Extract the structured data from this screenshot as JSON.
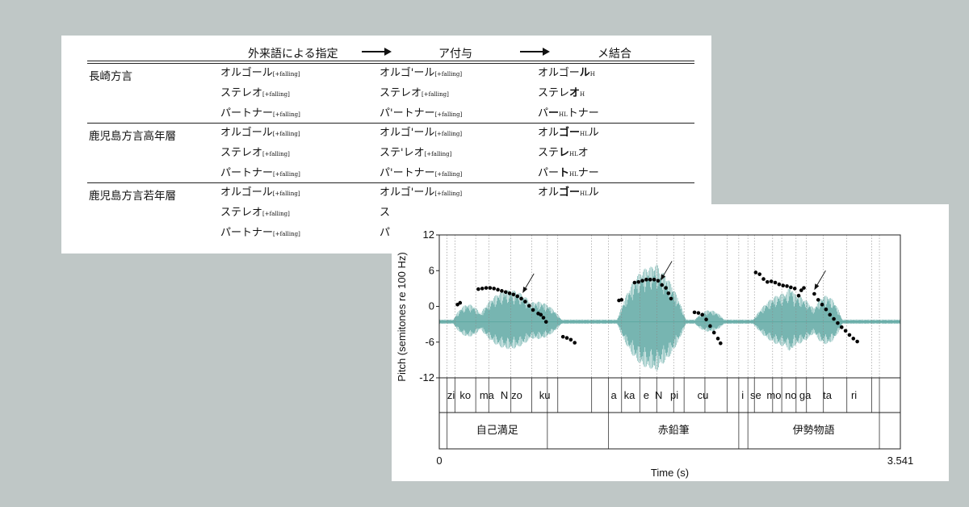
{
  "table": {
    "header": {
      "col1": "外来語による指定",
      "col2": "ア付与",
      "col3": "メ結合"
    },
    "rows": [
      {
        "group": "長崎方言",
        "items": [
          {
            "c1": "オルゴール",
            "c1s": "[+falling]",
            "c2": "オルゴ'ール",
            "c2s": "[+falling]",
            "c3a": "オルゴー",
            "c3b": "ル",
            "c3s": "H",
            "c3c": ""
          },
          {
            "c1": "ステレオ",
            "c1s": "[+falling]",
            "c2": "ステレオ",
            "c2s": "[+falling]",
            "c3a": "ステレ",
            "c3b": "オ",
            "c3s": "H",
            "c3c": ""
          },
          {
            "c1": "パートナー",
            "c1s": "[+falling]",
            "c2": "パ'ートナー",
            "c2s": "[+falling]",
            "c3a": "パ",
            "c3b": "ー",
            "c3s": "HL",
            "c3c": "トナー"
          }
        ]
      },
      {
        "group": "鹿児島方言高年層",
        "items": [
          {
            "c1": "オルゴール",
            "c1s": "[+falling]",
            "c2": "オルゴ'ール",
            "c2s": "[+falling]",
            "c3a": "オル",
            "c3b": "ゴー",
            "c3s": "HL",
            "c3c": "ル"
          },
          {
            "c1": "ステレオ",
            "c1s": "[+falling]",
            "c2": "ステ'レオ",
            "c2s": "[+falling]",
            "c3a": "ステ",
            "c3b": "レ",
            "c3s": "HL",
            "c3c": "オ"
          },
          {
            "c1": "パートナー",
            "c1s": "[+falling]",
            "c2": "パ'ートナー",
            "c2s": "[+falling]",
            "c3a": "パー",
            "c3b": "ト",
            "c3s": "HL",
            "c3c": "ナー"
          }
        ]
      },
      {
        "group": "鹿児島方言若年層",
        "items": [
          {
            "c1": "オルゴール",
            "c1s": "[+falling]",
            "c2": "オルゴ'ール",
            "c2s": "[+falling]",
            "c3a": "オル",
            "c3b": "ゴー",
            "c3s": "HL",
            "c3c": "ル"
          },
          {
            "c1": "ステレオ",
            "c1s": "[+falling]",
            "c2": "ス",
            "c2s": "",
            "c3a": "",
            "c3b": "",
            "c3s": "",
            "c3c": ""
          },
          {
            "c1": "パートナー",
            "c1s": "[+falling]",
            "c2": "パ",
            "c2s": "",
            "c3a": "",
            "c3b": "",
            "c3s": "",
            "c3c": ""
          }
        ]
      }
    ]
  },
  "chart_data": {
    "type": "scatter",
    "ylabel": "Pitch (semitones re 100 Hz)",
    "xlabel": "Time (s)",
    "xlim": [
      0,
      3.541
    ],
    "ylim": [
      -12,
      12
    ],
    "y_ticks": [
      "12",
      "6",
      "0",
      "-6",
      "-12"
    ],
    "x_tick_labels": [
      "0",
      "3.541"
    ],
    "syllables": [
      "zi",
      "ko",
      "ma",
      "N",
      "zo",
      "ku",
      "a",
      "ka",
      "e",
      "N",
      "pi",
      "cu",
      "i",
      "se",
      "mo",
      "no",
      "ga",
      "ta",
      "ri"
    ],
    "words": [
      "自己満足",
      "赤鉛筆",
      "伊勢物語"
    ],
    "colors": {
      "waveform": "#5fa8a3",
      "pitch": "#000000",
      "grid": "#888888"
    },
    "pitch_points": [
      [
        0.14,
        0.3
      ],
      [
        0.16,
        0.6
      ],
      [
        0.3,
        2.9
      ],
      [
        0.33,
        3.0
      ],
      [
        0.36,
        3.1
      ],
      [
        0.39,
        3.1
      ],
      [
        0.42,
        3.0
      ],
      [
        0.45,
        2.8
      ],
      [
        0.48,
        2.6
      ],
      [
        0.51,
        2.4
      ],
      [
        0.54,
        2.2
      ],
      [
        0.57,
        2.0
      ],
      [
        0.6,
        1.7
      ],
      [
        0.63,
        1.3
      ],
      [
        0.66,
        0.8
      ],
      [
        0.69,
        0.1
      ],
      [
        0.72,
        -0.6
      ],
      [
        0.76,
        -1.2
      ],
      [
        0.78,
        -1.4
      ],
      [
        0.8,
        -1.9
      ],
      [
        0.82,
        -2.6
      ],
      [
        0.95,
        -5.1
      ],
      [
        0.98,
        -5.3
      ],
      [
        1.01,
        -5.6
      ],
      [
        1.04,
        -6.1
      ],
      [
        1.38,
        1.0
      ],
      [
        1.4,
        1.1
      ],
      [
        1.5,
        4.0
      ],
      [
        1.53,
        4.1
      ],
      [
        1.56,
        4.3
      ],
      [
        1.59,
        4.5
      ],
      [
        1.62,
        4.5
      ],
      [
        1.65,
        4.5
      ],
      [
        1.68,
        4.3
      ],
      [
        1.71,
        3.6
      ],
      [
        1.74,
        3.1
      ],
      [
        1.76,
        2.2
      ],
      [
        1.78,
        1.3
      ],
      [
        1.96,
        -1.0
      ],
      [
        1.99,
        -1.1
      ],
      [
        2.02,
        -1.4
      ],
      [
        2.05,
        -2.2
      ],
      [
        2.08,
        -3.3
      ],
      [
        2.11,
        -4.4
      ],
      [
        2.14,
        -5.4
      ],
      [
        2.16,
        -6.2
      ],
      [
        2.43,
        5.7
      ],
      [
        2.46,
        5.4
      ],
      [
        2.49,
        4.6
      ],
      [
        2.52,
        4.1
      ],
      [
        2.55,
        4.2
      ],
      [
        2.58,
        4.0
      ],
      [
        2.61,
        3.7
      ],
      [
        2.64,
        3.5
      ],
      [
        2.67,
        3.4
      ],
      [
        2.7,
        3.2
      ],
      [
        2.73,
        3.0
      ],
      [
        2.76,
        1.8
      ],
      [
        2.78,
        2.7
      ],
      [
        2.8,
        3.1
      ],
      [
        2.88,
        2.1
      ],
      [
        2.91,
        1.1
      ],
      [
        2.94,
        0.3
      ],
      [
        2.97,
        -0.5
      ],
      [
        3.0,
        -1.4
      ],
      [
        3.03,
        -2.1
      ],
      [
        3.06,
        -2.8
      ],
      [
        3.09,
        -3.5
      ],
      [
        3.12,
        -4.1
      ],
      [
        3.15,
        -4.8
      ],
      [
        3.18,
        -5.4
      ],
      [
        3.21,
        -5.9
      ]
    ],
    "boundaries": [
      0.06,
      0.12,
      0.28,
      0.38,
      0.55,
      0.71,
      0.83,
      0.91,
      1.17,
      1.3,
      1.4,
      1.54,
      1.67,
      1.8,
      1.88,
      2.04,
      2.21,
      2.3,
      2.37,
      2.42,
      2.56,
      2.63,
      2.74,
      2.82,
      2.95,
      3.13,
      3.32,
      3.38
    ],
    "word_boundaries": [
      0.06,
      0.83,
      1.3,
      2.3,
      2.37,
      3.38
    ],
    "arrows": [
      [
        0.64,
        1.7
      ],
      [
        1.7,
        3.8
      ],
      [
        2.88,
        2.2
      ]
    ]
  }
}
